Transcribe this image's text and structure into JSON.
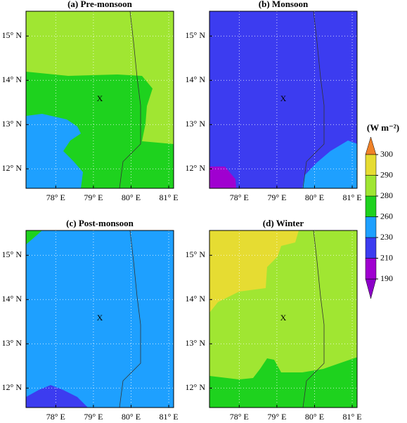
{
  "xlim": [
    77.21,
    81.13
  ],
  "ylim": [
    11.56,
    15.56
  ],
  "xticks": [
    {
      "value": 78,
      "label": "78° E"
    },
    {
      "value": 79,
      "label": "79° E"
    },
    {
      "value": 80,
      "label": "80° E"
    },
    {
      "value": 81,
      "label": "81° E"
    }
  ],
  "yticks": [
    {
      "value": 12,
      "label": "12° N"
    },
    {
      "value": 13,
      "label": "13° N"
    },
    {
      "value": 14,
      "label": "14° N"
    },
    {
      "value": 15,
      "label": "15° N"
    }
  ],
  "panels": [
    {
      "title": "(a) Pre-monsoon",
      "marker": "X"
    },
    {
      "title": "(b) Monsoon",
      "marker": "X"
    },
    {
      "title": "(c) Post-monsoon",
      "marker": "X"
    },
    {
      "title": "(d) Winter",
      "marker": "X"
    }
  ],
  "colorbar": {
    "unit": "(W m⁻²)",
    "ticks": [
      190,
      210,
      230,
      260,
      280,
      290,
      300
    ],
    "colors": [
      "#8c00c8",
      "#a000d0",
      "#3c3cf0",
      "#1ea0ff",
      "#1ed21e",
      "#a0e632",
      "#e6dc32",
      "#f08228"
    ]
  }
}
